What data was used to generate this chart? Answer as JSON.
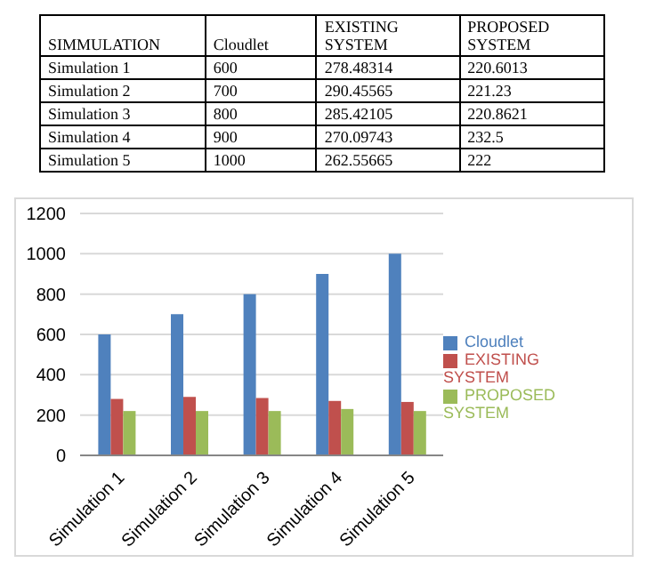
{
  "chart_data": [
    {
      "type": "other",
      "annotations": [
        "SIMMULATION"
      ],
      "categories": [
        "Simulation 1",
        "Simulation 2",
        "Simulation 3",
        "Simulation 4",
        "Simulation 5"
      ],
      "data_labels": true,
      "series": [
        {
          "name": "Cloudlet",
          "values": [
            600,
            700,
            800,
            900,
            1000
          ]
        },
        {
          "name": "EXISTING SYSTEM",
          "values": [
            278.48314,
            290.45565,
            285.42105,
            270.09743,
            262.55665
          ]
        },
        {
          "name": "PROPOSED SYSTEM",
          "values": [
            220.6013,
            221.23,
            220.8621,
            232.5,
            222
          ]
        }
      ]
    },
    {
      "type": "bar",
      "categories": [
        "Simulation 1",
        "Simulation 2",
        "Simulation 3",
        "Simulation 4",
        "Simulation 5"
      ],
      "series": [
        {
          "name": "Cloudlet",
          "color": "#4f81bd",
          "values": [
            600,
            700,
            800,
            900,
            1000
          ]
        },
        {
          "name": "EXISTING SYSTEM",
          "color": "#c0504d",
          "values": [
            280,
            290,
            285,
            270,
            265
          ]
        },
        {
          "name": "PROPOSED SYSTEM",
          "color": "#9bbb59",
          "values": [
            220,
            220,
            220,
            230,
            220
          ]
        }
      ],
      "ylim": [
        0,
        1200
      ],
      "yticks": [
        0,
        200,
        400,
        600,
        800,
        1000,
        1200
      ],
      "grid": "y",
      "legend": "right"
    }
  ]
}
